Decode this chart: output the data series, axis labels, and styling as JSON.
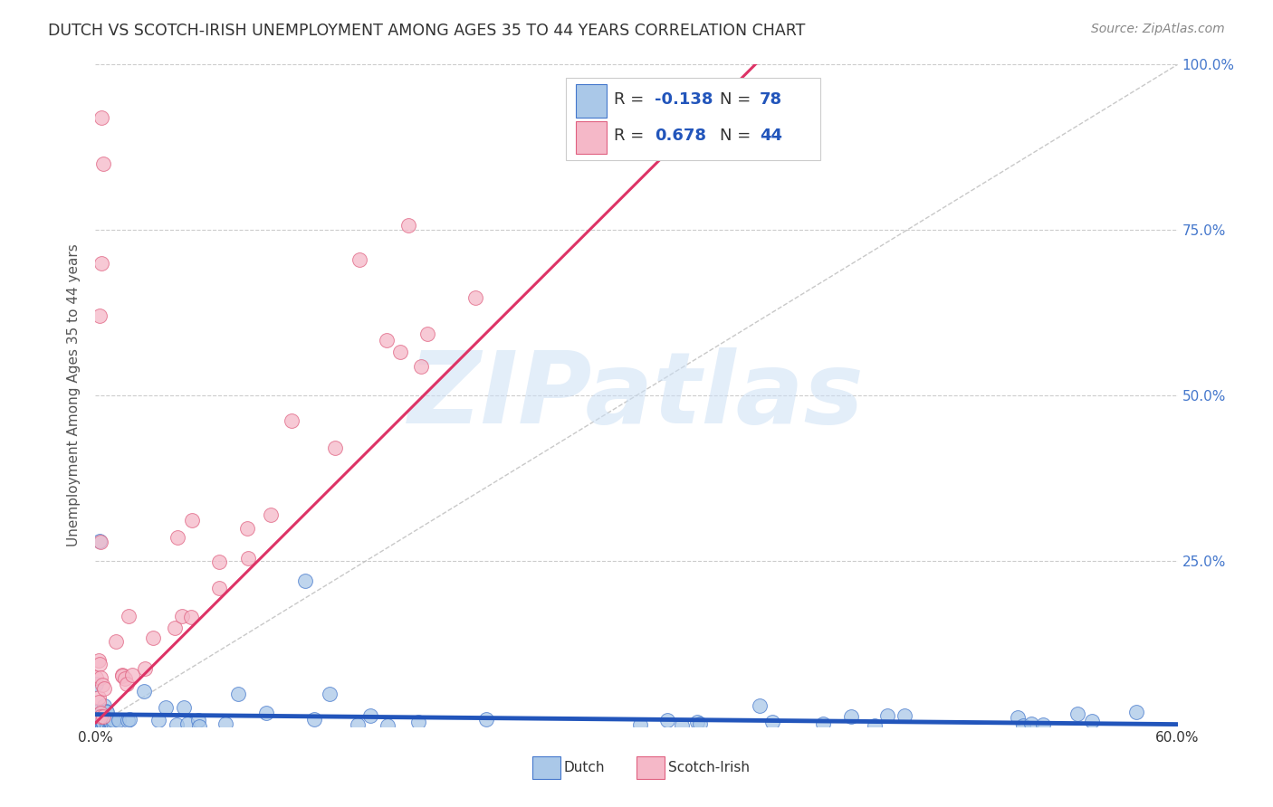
{
  "title": "DUTCH VS SCOTCH-IRISH UNEMPLOYMENT AMONG AGES 35 TO 44 YEARS CORRELATION CHART",
  "source": "Source: ZipAtlas.com",
  "ylabel": "Unemployment Among Ages 35 to 44 years",
  "xlim": [
    0.0,
    0.6
  ],
  "ylim": [
    0.0,
    1.0
  ],
  "xtick_vals": [
    0.0,
    0.1,
    0.2,
    0.3,
    0.4,
    0.5,
    0.6
  ],
  "xtick_labels": [
    "0.0%",
    "",
    "",
    "",
    "",
    "",
    "60.0%"
  ],
  "ytick_vals": [
    0.0,
    0.25,
    0.5,
    0.75,
    1.0
  ],
  "ytick_right_labels": [
    "",
    "25.0%",
    "50.0%",
    "75.0%",
    "100.0%"
  ],
  "watermark": "ZIPatlas",
  "legend_dutch_R": "-0.138",
  "legend_dutch_N": "78",
  "legend_scotch_R": "0.678",
  "legend_scotch_N": "44",
  "dutch_fill_color": "#aac8e8",
  "scotch_fill_color": "#f5b8c8",
  "dutch_edge_color": "#4477cc",
  "scotch_edge_color": "#e06080",
  "dutch_line_color": "#2255bb",
  "scotch_line_color": "#dd3366",
  "diag_line_color": "#bbbbbb",
  "background_color": "#ffffff",
  "grid_color": "#cccccc",
  "title_color": "#333333",
  "source_color": "#888888",
  "right_tick_color": "#4477cc",
  "ylabel_color": "#555555"
}
